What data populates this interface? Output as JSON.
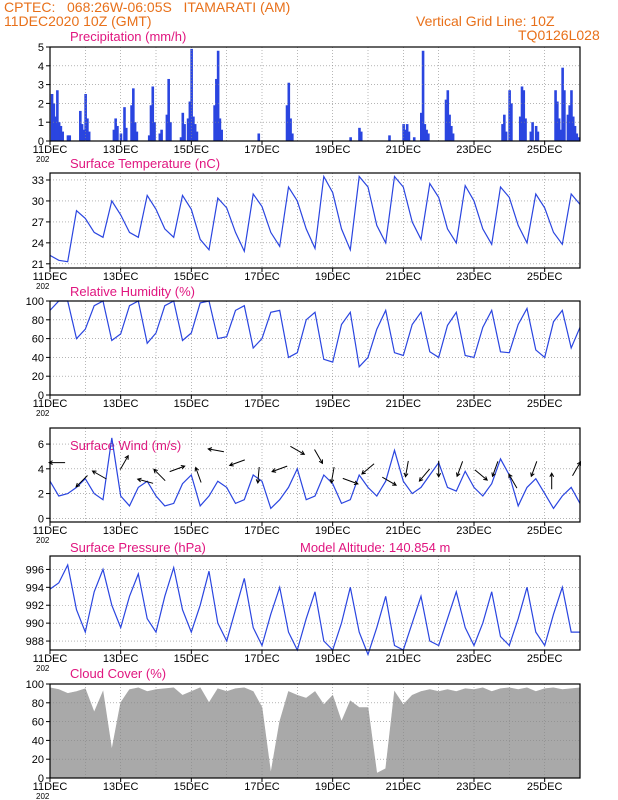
{
  "header": {
    "line1": "CPTEC:   068:26W-06:05S   ITAMARATI (AM)",
    "line2": "11DEC2020 10Z (GMT)",
    "grid_note": "Vertical Grid Line: 10Z",
    "run_id": "TQ0126L028",
    "model_altitude": "Model Altitude: 140.854 m"
  },
  "colors": {
    "header": "#e8701a",
    "title": "#e0157f",
    "series": "#2a45e0",
    "cloud": "#a9a9a9",
    "grid": "#888888",
    "arrow": "#000000"
  },
  "x_axis": {
    "labels": [
      "11DEC",
      "13DEC",
      "15DEC",
      "17DEC",
      "19DEC",
      "21DEC",
      "23DEC",
      "25DEC"
    ],
    "label_days": [
      0,
      2,
      4,
      6,
      8,
      10,
      12,
      14
    ],
    "range_days": [
      0,
      15
    ],
    "year_stub": "202"
  },
  "chart_data": [
    {
      "id": "precip",
      "type": "bar",
      "title": "Precipitation (mm/h)",
      "ylim": [
        0,
        5
      ],
      "yticks": [
        0,
        1,
        2,
        3,
        4,
        5
      ],
      "grid": true,
      "x_days": [
        0.05,
        0.1,
        0.15,
        0.2,
        0.25,
        0.3,
        0.35,
        0.5,
        0.55,
        0.85,
        0.9,
        0.95,
        1.0,
        1.05,
        1.1,
        1.8,
        1.85,
        1.9,
        2.0,
        2.1,
        2.15,
        2.3,
        2.35,
        2.4,
        2.45,
        2.8,
        2.85,
        2.9,
        2.95,
        3.1,
        3.15,
        3.3,
        3.35,
        3.4,
        3.7,
        3.75,
        3.8,
        3.9,
        3.95,
        4.0,
        4.05,
        4.1,
        4.15,
        4.65,
        4.7,
        4.75,
        4.8,
        4.85,
        5.9,
        6.7,
        6.75,
        6.8,
        6.85,
        8.5,
        8.75,
        8.8,
        9.6,
        10.0,
        10.05,
        10.1,
        10.15,
        10.3,
        10.5,
        10.55,
        10.6,
        10.65,
        10.7,
        11.2,
        11.25,
        11.3,
        11.35,
        11.4,
        12.8,
        12.85,
        12.9,
        13.0,
        13.05,
        13.3,
        13.35,
        13.4,
        13.45,
        13.6,
        13.65,
        13.75,
        13.8,
        14.3,
        14.35,
        14.4,
        14.45,
        14.5,
        14.55,
        14.65,
        14.7,
        14.75,
        14.8,
        14.85,
        14.9,
        14.95
      ],
      "values": [
        2.5,
        2.0,
        1.3,
        2.7,
        1.0,
        0.8,
        0.5,
        0.3,
        0.3,
        1.6,
        0.9,
        0.6,
        2.5,
        1.2,
        0.5,
        0.6,
        1.2,
        0.8,
        0.4,
        1.8,
        0.7,
        1.9,
        2.8,
        1.0,
        0.5,
        0.3,
        1.9,
        2.9,
        1.0,
        0.4,
        0.6,
        1.4,
        3.3,
        1.0,
        0.2,
        1.5,
        0.9,
        1.2,
        2.1,
        4.9,
        1.3,
        0.9,
        0.5,
        1.9,
        3.3,
        4.8,
        1.2,
        0.6,
        0.4,
        1.9,
        3.1,
        1.2,
        0.4,
        0.2,
        0.7,
        0.5,
        0.3,
        0.9,
        0.6,
        0.9,
        0.5,
        0.2,
        1.5,
        4.8,
        0.9,
        0.6,
        0.4,
        2.2,
        2.7,
        1.4,
        0.8,
        0.4,
        0.9,
        1.4,
        0.5,
        2.7,
        2.0,
        1.3,
        2.9,
        2.7,
        1.2,
        0.5,
        1.0,
        0.8,
        0.5,
        2.7,
        2.1,
        1.2,
        0.6,
        3.9,
        2.7,
        1.4,
        1.9,
        2.7,
        1.3,
        0.8,
        0.4,
        0.2
      ]
    },
    {
      "id": "temp",
      "type": "line",
      "title": "Surface Temperature (nC)",
      "ylim": [
        20.4,
        34
      ],
      "yticks": [
        21,
        24,
        27,
        30,
        33
      ],
      "grid": true,
      "x_days": [
        0,
        0.25,
        0.5,
        0.75,
        1,
        1.25,
        1.5,
        1.75,
        2,
        2.25,
        2.5,
        2.75,
        3,
        3.25,
        3.5,
        3.75,
        4,
        4.25,
        4.5,
        4.75,
        5,
        5.25,
        5.5,
        5.75,
        6,
        6.25,
        6.5,
        6.75,
        7,
        7.25,
        7.5,
        7.75,
        8,
        8.25,
        8.5,
        8.75,
        9,
        9.25,
        9.5,
        9.75,
        10,
        10.25,
        10.5,
        10.75,
        11,
        11.25,
        11.5,
        11.75,
        12,
        12.25,
        12.5,
        12.75,
        13,
        13.25,
        13.5,
        13.75,
        14,
        14.25,
        14.5,
        14.75,
        15
      ],
      "values": [
        22.2,
        21.5,
        21.3,
        28.6,
        27.5,
        25.5,
        24.8,
        30.0,
        28.0,
        25.5,
        24.8,
        30.8,
        28.8,
        26.0,
        24.8,
        30.8,
        28.8,
        24.5,
        23.0,
        30.4,
        29.0,
        25.5,
        22.8,
        31.0,
        29.2,
        25.5,
        23.5,
        32.0,
        30.0,
        26.0,
        23.2,
        33.5,
        31.2,
        26.0,
        23.0,
        33.5,
        32.0,
        26.5,
        24.0,
        33.5,
        32.0,
        27.0,
        24.5,
        32.5,
        30.5,
        26.0,
        24.0,
        32.2,
        30.0,
        26.0,
        23.8,
        32.0,
        30.5,
        26.5,
        24.0,
        31.0,
        29.0,
        25.5,
        23.8,
        31.0,
        29.5
      ]
    },
    {
      "id": "rh",
      "type": "line",
      "title": "Relative Humidity (%)",
      "ylim": [
        0,
        100
      ],
      "yticks": [
        0,
        20,
        40,
        60,
        80,
        100
      ],
      "grid": true,
      "x_days": [
        0,
        0.25,
        0.5,
        0.75,
        1,
        1.25,
        1.5,
        1.75,
        2,
        2.25,
        2.5,
        2.75,
        3,
        3.25,
        3.5,
        3.75,
        4,
        4.25,
        4.5,
        4.75,
        5,
        5.25,
        5.5,
        5.75,
        6,
        6.25,
        6.5,
        6.75,
        7,
        7.25,
        7.5,
        7.75,
        8,
        8.25,
        8.5,
        8.75,
        9,
        9.25,
        9.5,
        9.75,
        10,
        10.25,
        10.5,
        10.75,
        11,
        11.25,
        11.5,
        11.75,
        12,
        12.25,
        12.5,
        12.75,
        13,
        13.25,
        13.5,
        13.75,
        14,
        14.25,
        14.5,
        14.75,
        15
      ],
      "values": [
        90,
        100,
        100,
        60,
        70,
        95,
        100,
        58,
        65,
        95,
        100,
        55,
        66,
        95,
        100,
        58,
        66,
        98,
        100,
        60,
        62,
        90,
        95,
        50,
        60,
        88,
        90,
        40,
        45,
        80,
        88,
        38,
        35,
        75,
        88,
        30,
        40,
        70,
        90,
        45,
        42,
        75,
        88,
        46,
        40,
        74,
        88,
        42,
        40,
        72,
        90,
        46,
        45,
        75,
        92,
        48,
        40,
        78,
        90,
        50,
        72
      ]
    },
    {
      "id": "wind",
      "type": "line",
      "title": "Surface Wind (m/s)",
      "ylim": [
        -0.3,
        7.3
      ],
      "yticks": [
        0,
        2,
        4,
        6
      ],
      "grid": true,
      "x_days": [
        0,
        0.25,
        0.5,
        0.75,
        1,
        1.25,
        1.5,
        1.75,
        2,
        2.25,
        2.5,
        2.75,
        3,
        3.25,
        3.5,
        3.75,
        4,
        4.25,
        4.5,
        4.75,
        5,
        5.25,
        5.5,
        5.75,
        6,
        6.25,
        6.5,
        6.75,
        7,
        7.25,
        7.5,
        7.75,
        8,
        8.25,
        8.5,
        8.75,
        9,
        9.25,
        9.5,
        9.75,
        10,
        10.25,
        10.5,
        10.75,
        11,
        11.25,
        11.5,
        11.75,
        12,
        12.25,
        12.5,
        12.75,
        13,
        13.25,
        13.5,
        13.75,
        14,
        14.25,
        14.5,
        14.75,
        15
      ],
      "values": [
        3.0,
        1.8,
        2.0,
        2.5,
        3.2,
        2.0,
        1.5,
        6.5,
        1.8,
        1.0,
        2.5,
        3.0,
        1.8,
        1.0,
        1.2,
        2.8,
        3.5,
        1.0,
        1.8,
        3.0,
        2.5,
        1.2,
        1.5,
        3.5,
        3.0,
        0.8,
        1.5,
        2.5,
        4.0,
        1.5,
        1.8,
        3.5,
        2.8,
        1.2,
        1.5,
        3.5,
        2.5,
        1.8,
        3.0,
        5.5,
        3.0,
        2.0,
        2.5,
        3.5,
        4.5,
        2.5,
        2.2,
        3.8,
        2.5,
        1.8,
        2.8,
        4.8,
        3.5,
        1.0,
        2.5,
        3.2,
        2.0,
        0.8,
        1.8,
        2.5,
        1.2
      ],
      "arrows": [
        {
          "day": 0.2,
          "speed": 4.5,
          "angle": 180
        },
        {
          "day": 0.9,
          "speed": 3.0,
          "angle": 225
        },
        {
          "day": 1.4,
          "speed": 3.5,
          "angle": 150
        },
        {
          "day": 2.1,
          "speed": 4.5,
          "angle": 60
        },
        {
          "day": 2.7,
          "speed": 3.0,
          "angle": 165
        },
        {
          "day": 3.1,
          "speed": 3.5,
          "angle": 135
        },
        {
          "day": 3.6,
          "speed": 4.0,
          "angle": 20
        },
        {
          "day": 4.2,
          "speed": 3.5,
          "angle": 110
        },
        {
          "day": 4.7,
          "speed": 5.5,
          "angle": 170
        },
        {
          "day": 5.3,
          "speed": 4.5,
          "angle": 200
        },
        {
          "day": 5.9,
          "speed": 3.5,
          "angle": 265
        },
        {
          "day": 6.5,
          "speed": 4.0,
          "angle": 200
        },
        {
          "day": 7.0,
          "speed": 5.5,
          "angle": 330
        },
        {
          "day": 7.6,
          "speed": 5.0,
          "angle": 300
        },
        {
          "day": 8.0,
          "speed": 3.5,
          "angle": 260
        },
        {
          "day": 8.5,
          "speed": 3.0,
          "angle": 340
        },
        {
          "day": 9.0,
          "speed": 4.0,
          "angle": 220
        },
        {
          "day": 9.6,
          "speed": 3.0,
          "angle": 330
        },
        {
          "day": 10.1,
          "speed": 4.0,
          "angle": 260
        },
        {
          "day": 10.6,
          "speed": 3.5,
          "angle": 230
        },
        {
          "day": 11.0,
          "speed": 4.0,
          "angle": 270
        },
        {
          "day": 11.6,
          "speed": 4.0,
          "angle": 250
        },
        {
          "day": 12.2,
          "speed": 3.5,
          "angle": 320
        },
        {
          "day": 12.6,
          "speed": 4.0,
          "angle": 250
        },
        {
          "day": 13.1,
          "speed": 3.0,
          "angle": 120
        },
        {
          "day": 13.7,
          "speed": 4.0,
          "angle": 250
        },
        {
          "day": 14.2,
          "speed": 3.0,
          "angle": 90
        },
        {
          "day": 14.9,
          "speed": 4.0,
          "angle": 60
        }
      ]
    },
    {
      "id": "pres",
      "type": "line",
      "title": "Surface Pressure (hPa)",
      "ylim": [
        987,
        997.5
      ],
      "yticks": [
        988,
        990,
        992,
        994,
        996
      ],
      "grid": true,
      "x_days": [
        0,
        0.25,
        0.5,
        0.75,
        1,
        1.25,
        1.5,
        1.75,
        2,
        2.25,
        2.5,
        2.75,
        3,
        3.25,
        3.5,
        3.75,
        4,
        4.25,
        4.5,
        4.75,
        5,
        5.25,
        5.5,
        5.75,
        6,
        6.25,
        6.5,
        6.75,
        7,
        7.25,
        7.5,
        7.75,
        8,
        8.25,
        8.5,
        8.75,
        9,
        9.25,
        9.5,
        9.75,
        10,
        10.25,
        10.5,
        10.75,
        11,
        11.25,
        11.5,
        11.75,
        12,
        12.25,
        12.5,
        12.75,
        13,
        13.25,
        13.5,
        13.75,
        14,
        14.25,
        14.5,
        14.75,
        15
      ],
      "values": [
        993.8,
        994.5,
        996.5,
        991.5,
        989.0,
        993.5,
        996.0,
        992.0,
        989.5,
        993.0,
        995.5,
        990.5,
        989.0,
        993.0,
        996.2,
        991.5,
        989.0,
        992.0,
        995.8,
        990.0,
        988.0,
        991.5,
        995.0,
        989.5,
        987.5,
        991.0,
        994.0,
        989.0,
        987.0,
        990.5,
        993.5,
        988.0,
        987.0,
        990.0,
        994.0,
        989.0,
        986.5,
        989.5,
        993.0,
        987.5,
        987.0,
        990.0,
        993.0,
        988.0,
        987.5,
        990.5,
        993.5,
        989.5,
        987.5,
        990.0,
        993.5,
        988.5,
        987.5,
        990.5,
        994.0,
        989.0,
        987.5,
        991.0,
        994.0,
        989.0,
        989.0
      ]
    },
    {
      "id": "cloud",
      "type": "area",
      "title": "Cloud Cover (%)",
      "ylim": [
        0,
        100
      ],
      "yticks": [
        0,
        20,
        40,
        60,
        80,
        100
      ],
      "grid": true,
      "x_days": [
        0,
        0.25,
        0.5,
        0.75,
        1,
        1.25,
        1.5,
        1.75,
        2,
        2.25,
        2.5,
        2.75,
        3,
        3.25,
        3.5,
        3.75,
        4,
        4.25,
        4.5,
        4.75,
        5,
        5.25,
        5.5,
        5.75,
        6,
        6.25,
        6.5,
        6.75,
        7,
        7.25,
        7.5,
        7.75,
        8,
        8.25,
        8.5,
        8.75,
        9,
        9.25,
        9.5,
        9.75,
        10,
        10.25,
        10.5,
        10.75,
        11,
        11.25,
        11.5,
        11.75,
        12,
        12.25,
        12.5,
        12.75,
        13,
        13.25,
        13.5,
        13.75,
        14,
        14.25,
        14.5,
        14.75,
        15
      ],
      "values": [
        96,
        94,
        90,
        92,
        95,
        70,
        92,
        30,
        80,
        94,
        96,
        92,
        94,
        95,
        96,
        88,
        92,
        96,
        80,
        95,
        92,
        95,
        96,
        92,
        75,
        5,
        60,
        92,
        88,
        85,
        92,
        78,
        88,
        60,
        82,
        75,
        75,
        5,
        10,
        92,
        78,
        88,
        92,
        94,
        92,
        94,
        92,
        95,
        94,
        96,
        92,
        95,
        96,
        94,
        96,
        92,
        95,
        96,
        94,
        95,
        96
      ]
    }
  ],
  "panels": {
    "precip_title": "Precipitation (mm/h)",
    "temp_title": "Surface Temperature (nC)",
    "rh_title": "Relative Humidity (%)",
    "wind_title": "Surface Wind (m/s)",
    "pres_title": "Surface Pressure (hPa)",
    "cloud_title": "Cloud Cover (%)"
  }
}
